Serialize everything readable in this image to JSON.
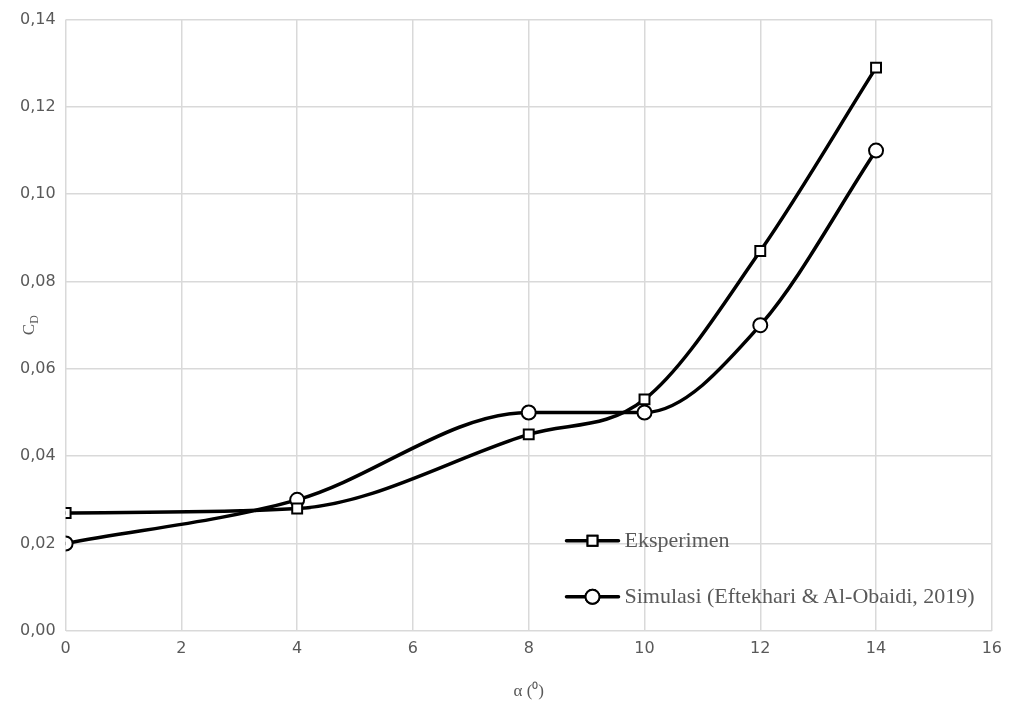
{
  "chart_data": {
    "type": "line",
    "xlabel": "α (⁰)",
    "ylabel": "C$_{D}$",
    "x": [
      0,
      4,
      8,
      10,
      12,
      14
    ],
    "series": [
      {
        "name": "Eksperimen",
        "color": "#000000",
        "marker": "square",
        "values": [
          0.027,
          0.028,
          0.045,
          0.053,
          0.087,
          0.129
        ]
      },
      {
        "name": "Simulasi (Eftekhari & Al-Obaidi, 2019)",
        "color": "#000000",
        "marker": "circle",
        "values": [
          0.02,
          0.03,
          0.05,
          0.05,
          0.07,
          0.11
        ]
      }
    ],
    "xlim": [
      0,
      16
    ],
    "xticks": [
      0,
      2,
      4,
      6,
      8,
      10,
      12,
      14,
      16
    ],
    "ylim": [
      0,
      0.14
    ],
    "yticks": [
      {
        "value": 0,
        "label": "0,00"
      },
      {
        "value": 0.02,
        "label": "0,02"
      },
      {
        "value": 0.04,
        "label": "0,04"
      },
      {
        "value": 0.06,
        "label": "0,06"
      },
      {
        "value": 0.08,
        "label": "0,08"
      },
      {
        "value": 0.1,
        "label": "0,10"
      },
      {
        "value": 0.12,
        "label": "0,12"
      },
      {
        "value": 0.14,
        "label": "0,14"
      }
    ],
    "grid": true,
    "legend": "bottom right",
    "line_style": "solid"
  }
}
